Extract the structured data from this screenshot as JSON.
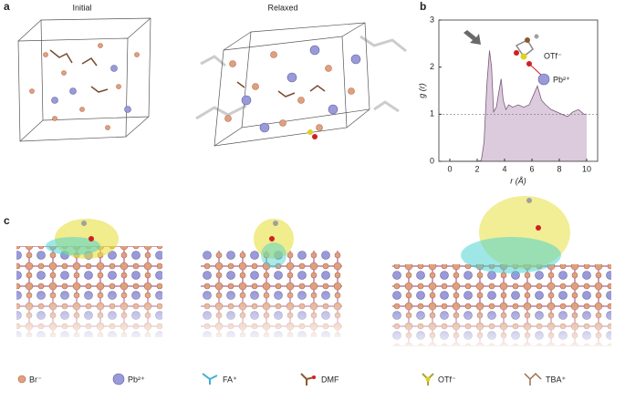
{
  "panels": {
    "a": {
      "label": "a",
      "left_title": "Initial",
      "right_title": "Relaxed"
    },
    "b": {
      "label": "b"
    },
    "c": {
      "label": "c"
    }
  },
  "legend": [
    "Br⁻",
    "Pb²⁺",
    "FA⁺",
    "DMF",
    "OTf⁻",
    "TBA⁺"
  ],
  "chart_data": {
    "type": "area",
    "xlabel": "r (Å)",
    "ylabel": "g (r)",
    "annotations": [
      "OTf⁻",
      "Pb²⁺"
    ],
    "x": [
      0,
      1,
      2,
      2.3,
      2.5,
      2.7,
      2.9,
      3.05,
      3.2,
      3.4,
      3.6,
      3.75,
      3.9,
      4.1,
      4.3,
      4.6,
      5.0,
      5.4,
      5.8,
      6.1,
      6.4,
      6.7,
      7.0,
      7.4,
      7.8,
      8.2,
      8.6,
      9.0,
      9.4,
      9.8,
      10.0
    ],
    "values": [
      0,
      0,
      0,
      0.02,
      0.4,
      1.6,
      2.35,
      2.0,
      1.05,
      1.15,
      1.5,
      1.75,
      1.3,
      1.1,
      1.2,
      1.15,
      1.2,
      1.15,
      1.2,
      1.4,
      1.6,
      1.3,
      1.2,
      1.1,
      1.05,
      1.0,
      0.95,
      1.05,
      1.1,
      1.0,
      1.0
    ],
    "color": "#7a5a7a",
    "fill": "#dccbdc",
    "xlim": [
      -0.8,
      10.8
    ],
    "ylim": [
      0,
      3
    ],
    "xticks": [
      0,
      2,
      4,
      6,
      8,
      10
    ],
    "yticks": [
      0,
      1,
      2,
      3
    ],
    "refline": 1
  }
}
